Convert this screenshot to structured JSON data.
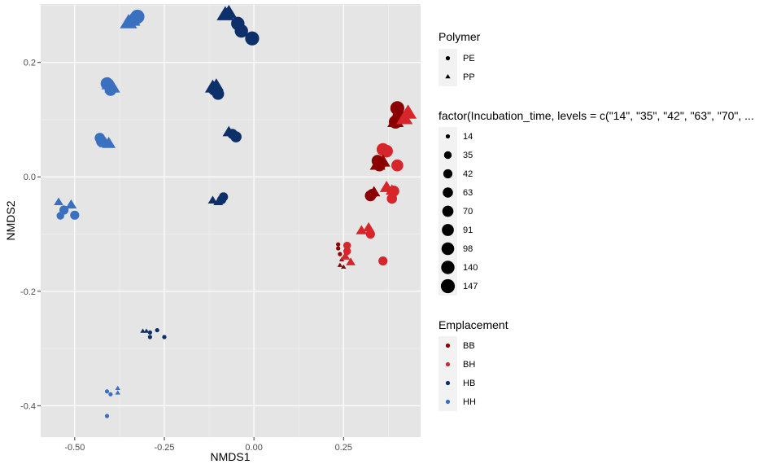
{
  "chart_data": {
    "type": "scatter",
    "xlabel": "NMDS1",
    "ylabel": "NMDS2",
    "xlim": [
      -0.595,
      0.465
    ],
    "ylim": [
      -0.455,
      0.302
    ],
    "x_ticks": [
      -0.5,
      -0.25,
      0.0,
      0.25
    ],
    "x_tick_labels": [
      "-0.50",
      "-0.25",
      "0.00",
      "0.25"
    ],
    "y_ticks": [
      -0.4,
      -0.2,
      0.0,
      0.2
    ],
    "y_tick_labels": [
      "-0.4",
      "-0.2",
      "0.0",
      "0.2"
    ],
    "grid": true,
    "legend_position": "right",
    "legends": {
      "shape": {
        "title": "Polymer",
        "items": [
          {
            "label": "PE",
            "shape": "circle"
          },
          {
            "label": "PP",
            "shape": "triangle"
          }
        ]
      },
      "size": {
        "title": "factor(Incubation_time, levels = c(\"14\", \"35\", \"42\", \"63\", \"70\", ...",
        "items": [
          "14",
          "35",
          "42",
          "63",
          "70",
          "91",
          "98",
          "140",
          "147"
        ]
      },
      "color": {
        "title": "Emplacement",
        "items": [
          {
            "label": "BB",
            "color": "#8b0000"
          },
          {
            "label": "BH",
            "color": "#d7262b"
          },
          {
            "label": "HB",
            "color": "#0d2f6a"
          },
          {
            "label": "HH",
            "color": "#3a70c0"
          }
        ]
      }
    },
    "points": [
      {
        "x": -0.33,
        "y": 0.277,
        "p": "PE",
        "t": "140",
        "e": "HH"
      },
      {
        "x": -0.325,
        "y": 0.28,
        "p": "PE",
        "t": "147",
        "e": "HH"
      },
      {
        "x": -0.34,
        "y": 0.272,
        "p": "PP",
        "t": "140",
        "e": "HH"
      },
      {
        "x": -0.35,
        "y": 0.268,
        "p": "PP",
        "t": "147",
        "e": "HH"
      },
      {
        "x": -0.41,
        "y": 0.163,
        "p": "PE",
        "t": "98",
        "e": "HH"
      },
      {
        "x": -0.4,
        "y": 0.152,
        "p": "PE",
        "t": "91",
        "e": "HH"
      },
      {
        "x": -0.395,
        "y": 0.155,
        "p": "PP",
        "t": "98",
        "e": "HH"
      },
      {
        "x": -0.405,
        "y": 0.16,
        "p": "PP",
        "t": "91",
        "e": "HH"
      },
      {
        "x": -0.43,
        "y": 0.068,
        "p": "PE",
        "t": "63",
        "e": "HH"
      },
      {
        "x": -0.425,
        "y": 0.062,
        "p": "PE",
        "t": "70",
        "e": "HH"
      },
      {
        "x": -0.415,
        "y": 0.058,
        "p": "PP",
        "t": "63",
        "e": "HH"
      },
      {
        "x": -0.405,
        "y": 0.057,
        "p": "PP",
        "t": "70",
        "e": "HH"
      },
      {
        "x": -0.54,
        "y": -0.068,
        "p": "PE",
        "t": "35",
        "e": "HH"
      },
      {
        "x": -0.53,
        "y": -0.058,
        "p": "PE",
        "t": "42",
        "e": "HH"
      },
      {
        "x": -0.5,
        "y": -0.067,
        "p": "PE",
        "t": "42",
        "e": "HH"
      },
      {
        "x": -0.545,
        "y": -0.045,
        "p": "PP",
        "t": "35",
        "e": "HH"
      },
      {
        "x": -0.51,
        "y": -0.05,
        "p": "PP",
        "t": "42",
        "e": "HH"
      },
      {
        "x": -0.41,
        "y": -0.375,
        "p": "PE",
        "t": "14",
        "e": "HH"
      },
      {
        "x": -0.4,
        "y": -0.38,
        "p": "PE",
        "t": "14",
        "e": "HH"
      },
      {
        "x": -0.41,
        "y": -0.418,
        "p": "PE",
        "t": "14",
        "e": "HH"
      },
      {
        "x": -0.38,
        "y": -0.37,
        "p": "PP",
        "t": "14",
        "e": "HH"
      },
      {
        "x": -0.38,
        "y": -0.378,
        "p": "PP",
        "t": "14",
        "e": "HH"
      },
      {
        "x": -0.07,
        "y": 0.285,
        "p": "PP",
        "t": "140",
        "e": "HB"
      },
      {
        "x": -0.08,
        "y": 0.282,
        "p": "PP",
        "t": "147",
        "e": "HB"
      },
      {
        "x": -0.045,
        "y": 0.268,
        "p": "PE",
        "t": "140",
        "e": "HB"
      },
      {
        "x": -0.035,
        "y": 0.255,
        "p": "PE",
        "t": "140",
        "e": "HB"
      },
      {
        "x": -0.005,
        "y": 0.242,
        "p": "PE",
        "t": "147",
        "e": "HB"
      },
      {
        "x": -0.115,
        "y": 0.155,
        "p": "PP",
        "t": "98",
        "e": "HB"
      },
      {
        "x": -0.11,
        "y": 0.153,
        "p": "PE",
        "t": "98",
        "e": "HB"
      },
      {
        "x": -0.1,
        "y": 0.145,
        "p": "PE",
        "t": "91",
        "e": "HB"
      },
      {
        "x": -0.105,
        "y": 0.158,
        "p": "PP",
        "t": "91",
        "e": "HB"
      },
      {
        "x": -0.07,
        "y": 0.077,
        "p": "PP",
        "t": "63",
        "e": "HB"
      },
      {
        "x": -0.06,
        "y": 0.075,
        "p": "PE",
        "t": "63",
        "e": "HB"
      },
      {
        "x": -0.05,
        "y": 0.07,
        "p": "PE",
        "t": "70",
        "e": "HB"
      },
      {
        "x": -0.115,
        "y": -0.042,
        "p": "PP",
        "t": "35",
        "e": "HB"
      },
      {
        "x": -0.1,
        "y": -0.045,
        "p": "PP",
        "t": "35",
        "e": "HB"
      },
      {
        "x": -0.09,
        "y": -0.04,
        "p": "PE",
        "t": "42",
        "e": "HB"
      },
      {
        "x": -0.085,
        "y": -0.035,
        "p": "PE",
        "t": "42",
        "e": "HB"
      },
      {
        "x": -0.31,
        "y": -0.27,
        "p": "PP",
        "t": "14",
        "e": "HB"
      },
      {
        "x": -0.3,
        "y": -0.27,
        "p": "PP",
        "t": "14",
        "e": "HB"
      },
      {
        "x": -0.29,
        "y": -0.272,
        "p": "PE",
        "t": "14",
        "e": "HB"
      },
      {
        "x": -0.29,
        "y": -0.28,
        "p": "PE",
        "t": "14",
        "e": "HB"
      },
      {
        "x": -0.27,
        "y": -0.268,
        "p": "PE",
        "t": "14",
        "e": "HB"
      },
      {
        "x": -0.25,
        "y": -0.28,
        "p": "PE",
        "t": "14",
        "e": "HB"
      },
      {
        "x": 0.4,
        "y": 0.12,
        "p": "PE",
        "t": "147",
        "e": "BB"
      },
      {
        "x": 0.405,
        "y": 0.105,
        "p": "PE",
        "t": "140",
        "e": "BB"
      },
      {
        "x": 0.395,
        "y": 0.096,
        "p": "PE",
        "t": "140",
        "e": "BB"
      },
      {
        "x": 0.41,
        "y": 0.105,
        "p": "PP",
        "t": "147",
        "e": "BB"
      },
      {
        "x": 0.395,
        "y": 0.095,
        "p": "PP",
        "t": "140",
        "e": "BB"
      },
      {
        "x": 0.43,
        "y": 0.11,
        "p": "PP",
        "t": "147",
        "e": "BH"
      },
      {
        "x": 0.42,
        "y": 0.1,
        "p": "PP",
        "t": "140",
        "e": "BH"
      },
      {
        "x": 0.36,
        "y": 0.048,
        "p": "PE",
        "t": "98",
        "e": "BH"
      },
      {
        "x": 0.37,
        "y": 0.045,
        "p": "PE",
        "t": "98",
        "e": "BH"
      },
      {
        "x": 0.345,
        "y": 0.028,
        "p": "PE",
        "t": "91",
        "e": "BB"
      },
      {
        "x": 0.35,
        "y": 0.02,
        "p": "PE",
        "t": "91",
        "e": "BB"
      },
      {
        "x": 0.36,
        "y": 0.025,
        "p": "PP",
        "t": "91",
        "e": "BB"
      },
      {
        "x": 0.345,
        "y": 0.02,
        "p": "PP",
        "t": "98",
        "e": "BB"
      },
      {
        "x": 0.4,
        "y": 0.02,
        "p": "PE",
        "t": "91",
        "e": "BH"
      },
      {
        "x": 0.33,
        "y": -0.03,
        "p": "PE",
        "t": "63",
        "e": "BB"
      },
      {
        "x": 0.335,
        "y": -0.028,
        "p": "PP",
        "t": "63",
        "e": "BB"
      },
      {
        "x": 0.325,
        "y": -0.033,
        "p": "PE",
        "t": "70",
        "e": "BB"
      },
      {
        "x": 0.37,
        "y": -0.02,
        "p": "PP",
        "t": "70",
        "e": "BH"
      },
      {
        "x": 0.385,
        "y": -0.025,
        "p": "PP",
        "t": "63",
        "e": "BH"
      },
      {
        "x": 0.39,
        "y": -0.025,
        "p": "PE",
        "t": "70",
        "e": "BH"
      },
      {
        "x": 0.385,
        "y": -0.038,
        "p": "PE",
        "t": "63",
        "e": "BH"
      },
      {
        "x": 0.3,
        "y": -0.095,
        "p": "PP",
        "t": "42",
        "e": "BH"
      },
      {
        "x": 0.32,
        "y": -0.09,
        "p": "PP",
        "t": "42",
        "e": "BH"
      },
      {
        "x": 0.325,
        "y": -0.1,
        "p": "PE",
        "t": "42",
        "e": "BH"
      },
      {
        "x": 0.36,
        "y": -0.147,
        "p": "PE",
        "t": "42",
        "e": "BH"
      },
      {
        "x": 0.235,
        "y": -0.118,
        "p": "PE",
        "t": "14",
        "e": "BB"
      },
      {
        "x": 0.235,
        "y": -0.125,
        "p": "PE",
        "t": "14",
        "e": "BB"
      },
      {
        "x": 0.24,
        "y": -0.135,
        "p": "PE",
        "t": "14",
        "e": "BB"
      },
      {
        "x": 0.245,
        "y": -0.145,
        "p": "PP",
        "t": "14",
        "e": "BB"
      },
      {
        "x": 0.24,
        "y": -0.155,
        "p": "PP",
        "t": "14",
        "e": "BB"
      },
      {
        "x": 0.25,
        "y": -0.158,
        "p": "PP",
        "t": "14",
        "e": "BB"
      },
      {
        "x": 0.26,
        "y": -0.12,
        "p": "PE",
        "t": "35",
        "e": "BH"
      },
      {
        "x": 0.26,
        "y": -0.13,
        "p": "PE",
        "t": "35",
        "e": "BH"
      },
      {
        "x": 0.255,
        "y": -0.14,
        "p": "PP",
        "t": "35",
        "e": "BH"
      },
      {
        "x": 0.27,
        "y": -0.15,
        "p": "PP",
        "t": "35",
        "e": "BH"
      }
    ]
  }
}
